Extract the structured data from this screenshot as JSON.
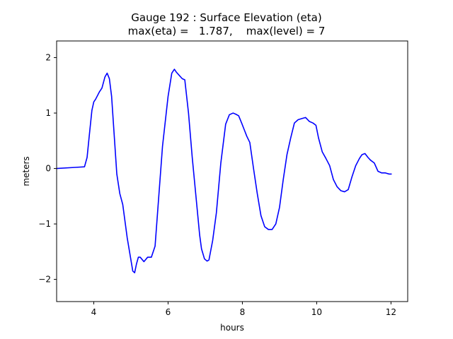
{
  "title_line1": "Gauge 192 : Surface Elevation (eta)",
  "title_line2": "max(eta) =   1.787,    max(level) = 7",
  "colors": {
    "series": "#0000ff",
    "axis": "#000000",
    "background": "#ffffff"
  },
  "chart_data": {
    "type": "line",
    "title": "Gauge 192 : Surface Elevation (eta)",
    "subtitle": "max(eta) =   1.787,    max(level) = 7",
    "xlabel": "hours",
    "ylabel": "meters",
    "xlim": [
      3.0,
      12.45
    ],
    "ylim": [
      -2.4,
      2.3
    ],
    "xticks": [
      4,
      6,
      8,
      10,
      12
    ],
    "yticks": [
      -2,
      -1,
      0,
      1,
      2
    ],
    "grid": false,
    "legend": "none",
    "series": [
      {
        "color": "#0000ff",
        "x": [
          3.0,
          3.5,
          3.75,
          3.82,
          3.88,
          3.95,
          4.0,
          4.05,
          4.15,
          4.22,
          4.3,
          4.36,
          4.42,
          4.48,
          4.55,
          4.62,
          4.7,
          4.78,
          4.9,
          5.0,
          5.05,
          5.1,
          5.15,
          5.2,
          5.25,
          5.35,
          5.45,
          5.55,
          5.65,
          5.75,
          5.85,
          6.0,
          6.1,
          6.17,
          6.22,
          6.3,
          6.38,
          6.45,
          6.55,
          6.65,
          6.75,
          6.85,
          6.9,
          6.98,
          7.05,
          7.1,
          7.2,
          7.3,
          7.42,
          7.55,
          7.65,
          7.75,
          7.82,
          7.9,
          7.98,
          8.05,
          8.12,
          8.2,
          8.3,
          8.4,
          8.5,
          8.6,
          8.7,
          8.8,
          8.9,
          9.0,
          9.1,
          9.2,
          9.3,
          9.4,
          9.5,
          9.6,
          9.7,
          9.8,
          9.9,
          9.98,
          10.05,
          10.15,
          10.25,
          10.35,
          10.45,
          10.55,
          10.65,
          10.75,
          10.85,
          10.95,
          11.05,
          11.15,
          11.22,
          11.3,
          11.38,
          11.45,
          11.55,
          11.65,
          11.75,
          11.85,
          11.95,
          12.02
        ],
        "y": [
          0.0,
          0.02,
          0.03,
          0.2,
          0.6,
          1.05,
          1.2,
          1.25,
          1.38,
          1.45,
          1.65,
          1.72,
          1.62,
          1.3,
          0.6,
          -0.1,
          -0.45,
          -0.65,
          -1.25,
          -1.65,
          -1.85,
          -1.88,
          -1.72,
          -1.6,
          -1.6,
          -1.68,
          -1.6,
          -1.6,
          -1.4,
          -0.5,
          0.4,
          1.3,
          1.72,
          1.79,
          1.74,
          1.68,
          1.62,
          1.6,
          1.0,
          0.2,
          -0.5,
          -1.2,
          -1.45,
          -1.63,
          -1.67,
          -1.65,
          -1.3,
          -0.8,
          0.1,
          0.8,
          0.97,
          1.0,
          0.98,
          0.95,
          0.82,
          0.7,
          0.58,
          0.47,
          0.0,
          -0.45,
          -0.85,
          -1.05,
          -1.1,
          -1.1,
          -1.0,
          -0.7,
          -0.2,
          0.25,
          0.55,
          0.82,
          0.88,
          0.9,
          0.92,
          0.85,
          0.82,
          0.78,
          0.55,
          0.3,
          0.18,
          0.05,
          -0.2,
          -0.33,
          -0.4,
          -0.42,
          -0.38,
          -0.15,
          0.05,
          0.18,
          0.25,
          0.27,
          0.2,
          0.15,
          0.1,
          -0.05,
          -0.08,
          -0.08,
          -0.1,
          -0.1
        ]
      }
    ]
  }
}
